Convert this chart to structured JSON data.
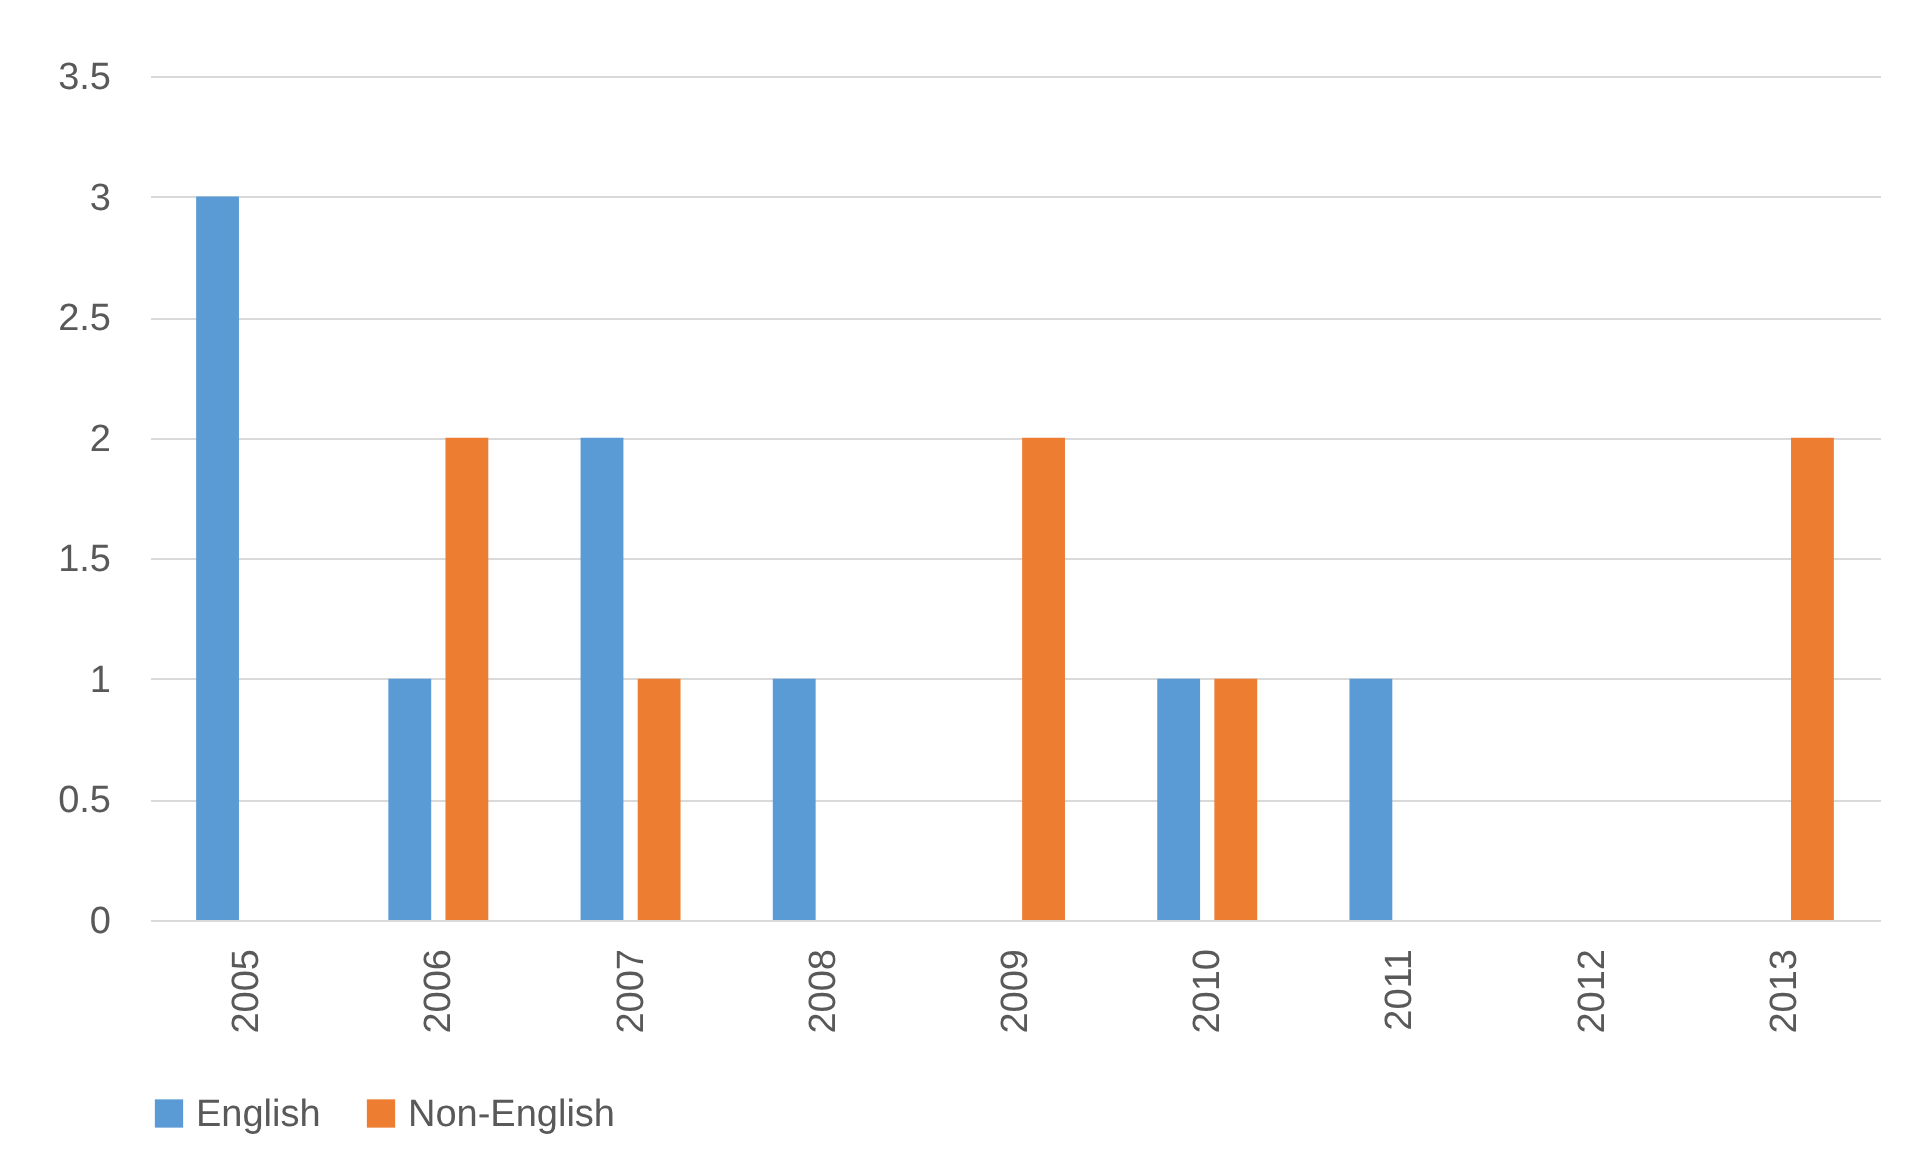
{
  "chart_data": {
    "type": "bar",
    "categories": [
      "2005",
      "2006",
      "2007",
      "2008",
      "2009",
      "2010",
      "2011",
      "2012",
      "2013"
    ],
    "series": [
      {
        "name": "English",
        "color": "#5b9bd5",
        "values": [
          3,
          1,
          2,
          1,
          0,
          1,
          1,
          0,
          0
        ]
      },
      {
        "name": "Non-English",
        "color": "#ed7d31",
        "values": [
          0,
          2,
          1,
          0,
          2,
          1,
          0,
          0,
          2
        ]
      }
    ],
    "ylim": [
      0,
      3.5
    ],
    "yticks": [
      0,
      0.5,
      1,
      1.5,
      2,
      2.5,
      3,
      3.5
    ],
    "grid": "y",
    "legend": "bottom"
  }
}
